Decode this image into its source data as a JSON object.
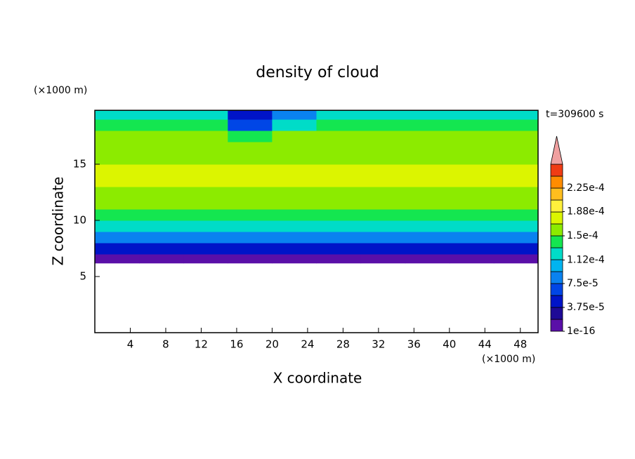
{
  "chart_data": {
    "type": "contour",
    "title": "density of cloud",
    "x_label": "X coordinate",
    "y_label": "Z coordinate",
    "x_unit": "(×1000 m)",
    "y_unit": "(×1000 m)",
    "annotation": "t=309600 s",
    "xlim": [
      0,
      50
    ],
    "ylim": [
      0,
      20
    ],
    "xticks": [
      4,
      8,
      12,
      16,
      20,
      24,
      28,
      32,
      36,
      40,
      44,
      48
    ],
    "yticks": [
      5,
      10,
      15
    ],
    "x_edges": [
      0,
      5,
      10,
      15,
      20,
      25,
      30,
      35,
      40,
      45,
      50
    ],
    "y_edges": [
      6.2,
      7,
      8,
      9,
      10,
      11,
      12,
      13,
      14,
      15,
      16,
      17,
      18,
      19,
      19.8
    ],
    "values": [
      [
        1e-05,
        1e-05,
        1e-05,
        1e-05,
        1e-05,
        1e-05,
        1e-05,
        1e-05,
        1e-05,
        1e-05
      ],
      [
        5e-05,
        5e-05,
        5e-05,
        4.5e-05,
        5e-05,
        5e-05,
        5e-05,
        5e-05,
        5e-05,
        5e-05
      ],
      [
        8.5e-05,
        8.5e-05,
        8.5e-05,
        8e-05,
        8.5e-05,
        8.5e-05,
        8.5e-05,
        9e-05,
        9e-05,
        9e-05
      ],
      [
        0.00012,
        0.00012,
        0.00012,
        0.000115,
        0.00012,
        0.00012,
        0.00012,
        0.00012,
        0.00012,
        0.00012
      ],
      [
        0.00014,
        0.00014,
        0.00014,
        0.00014,
        0.00014,
        0.00014,
        0.00014,
        0.00014,
        0.00014,
        0.00014
      ],
      [
        0.000155,
        0.000155,
        0.000155,
        0.000155,
        0.000155,
        0.000155,
        0.000155,
        0.000155,
        0.000155,
        0.000155
      ],
      [
        0.000165,
        0.000165,
        0.000165,
        0.000165,
        0.000165,
        0.000165,
        0.000165,
        0.000165,
        0.000165,
        0.000165
      ],
      [
        0.000175,
        0.000175,
        0.000172,
        0.00017,
        0.00017,
        0.000172,
        0.000175,
        0.000175,
        0.000175,
        0.000172
      ],
      [
        0.00017,
        0.000172,
        0.00017,
        0.00017,
        0.00017,
        0.00017,
        0.00017,
        0.000172,
        0.000175,
        0.00017
      ],
      [
        0.00016,
        0.000162,
        0.00016,
        0.00016,
        0.000165,
        0.00016,
        0.00016,
        0.00016,
        0.000162,
        0.00016
      ],
      [
        0.000155,
        0.000155,
        0.000155,
        0.00015,
        0.00016,
        0.000155,
        0.000155,
        0.000155,
        0.000155,
        0.000155
      ],
      [
        0.00015,
        0.00015,
        0.00015,
        0.00014,
        0.00015,
        0.00015,
        0.00015,
        0.00015,
        0.00015,
        0.00015
      ],
      [
        0.00014,
        0.00014,
        0.00014,
        6e-05,
        0.00012,
        0.00014,
        0.00014,
        0.00014,
        0.00014,
        0.00014
      ],
      [
        0.00013,
        0.00013,
        0.00013,
        4e-05,
        9e-05,
        0.00013,
        0.00013,
        0.00013,
        0.00013,
        0.00013
      ]
    ],
    "levels": [
      1e-16,
      1.875e-05,
      3.75e-05,
      5.625e-05,
      7.5e-05,
      9.375e-05,
      0.0001125,
      0.00013125,
      0.00015,
      0.00016875,
      0.0001875,
      0.00020625,
      0.000225,
      0.00024375
    ],
    "colors": [
      "#5a0fa8",
      "#1e0a96",
      "#0014c8",
      "#0046e6",
      "#0a82f0",
      "#00b4f0",
      "#00dcc8",
      "#14e650",
      "#8ceb00",
      "#dcf500",
      "#fff03c",
      "#ffbe1e",
      "#ff8c00",
      "#f03c14"
    ],
    "over_color": "#f0a0a0",
    "colorbar_ticks": [
      {
        "value": 1e-16,
        "label": "1e-16"
      },
      {
        "value": 3.75e-05,
        "label": "3.75e-5"
      },
      {
        "value": 7.5e-05,
        "label": "7.5e-5"
      },
      {
        "value": 0.000112,
        "label": "1.12e-4"
      },
      {
        "value": 0.00015,
        "label": "1.5e-4"
      },
      {
        "value": 0.000188,
        "label": "1.88e-4"
      },
      {
        "value": 0.000225,
        "label": "2.25e-4"
      }
    ]
  }
}
